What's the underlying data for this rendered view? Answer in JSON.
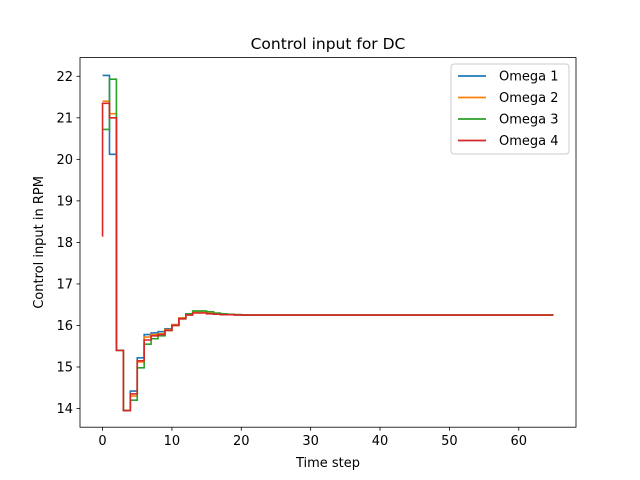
{
  "chart_data": {
    "type": "line",
    "drawstyle": "steps-post",
    "title": "Control input for DC",
    "xlabel": "Time step",
    "ylabel": "Control input in RPM",
    "xlim": [
      -3.25,
      68.25
    ],
    "ylim": [
      13.55,
      22.45
    ],
    "xticks": [
      0,
      10,
      20,
      30,
      40,
      50,
      60
    ],
    "yticks": [
      14,
      15,
      16,
      17,
      18,
      19,
      20,
      21,
      22
    ],
    "grid": false,
    "legend_position": "upper right",
    "colors": {
      "Omega 1": "#1f77b4",
      "Omega 2": "#ff7f0e",
      "Omega 3": "#2ca02c",
      "Omega 4": "#d62728"
    },
    "x": [
      0,
      1,
      2,
      3,
      4,
      5,
      6,
      7,
      8,
      9,
      10,
      11,
      12,
      13,
      14,
      15,
      16,
      17,
      18,
      19,
      20,
      21,
      22,
      23,
      24,
      25,
      26,
      27,
      28,
      29,
      30,
      31,
      32,
      33,
      34,
      35,
      36,
      37,
      38,
      39,
      40,
      41,
      42,
      43,
      44,
      45,
      46,
      47,
      48,
      49,
      50,
      51,
      52,
      53,
      54,
      55,
      56,
      57,
      58,
      59,
      60,
      61,
      62,
      63,
      64,
      65
    ],
    "series": [
      {
        "name": "Omega 1",
        "values": [
          22.02,
          20.12,
          15.4,
          13.95,
          14.42,
          15.22,
          15.78,
          15.82,
          15.85,
          15.92,
          16.02,
          16.18,
          16.28,
          16.32,
          16.32,
          16.3,
          16.28,
          16.27,
          16.26,
          16.26,
          16.25,
          16.25,
          16.25,
          16.25,
          16.25,
          16.25,
          16.25,
          16.25,
          16.25,
          16.25,
          16.25,
          16.25,
          16.25,
          16.25,
          16.25,
          16.25,
          16.25,
          16.25,
          16.25,
          16.25,
          16.25,
          16.25,
          16.25,
          16.25,
          16.25,
          16.25,
          16.25,
          16.25,
          16.25,
          16.25,
          16.25,
          16.25,
          16.25,
          16.25,
          16.25,
          16.25,
          16.25,
          16.25,
          16.25,
          16.25,
          16.25,
          16.25,
          16.25,
          16.25,
          16.25,
          16.25
        ]
      },
      {
        "name": "Omega 2",
        "values": [
          21.4,
          21.1,
          15.4,
          13.95,
          14.3,
          15.12,
          15.72,
          15.78,
          15.8,
          15.9,
          16.02,
          16.18,
          16.28,
          16.32,
          16.33,
          16.31,
          16.29,
          16.27,
          16.26,
          16.26,
          16.25,
          16.25,
          16.25,
          16.25,
          16.25,
          16.25,
          16.25,
          16.25,
          16.25,
          16.25,
          16.25,
          16.25,
          16.25,
          16.25,
          16.25,
          16.25,
          16.25,
          16.25,
          16.25,
          16.25,
          16.25,
          16.25,
          16.25,
          16.25,
          16.25,
          16.25,
          16.25,
          16.25,
          16.25,
          16.25,
          16.25,
          16.25,
          16.25,
          16.25,
          16.25,
          16.25,
          16.25,
          16.25,
          16.25,
          16.25,
          16.25,
          16.25,
          16.25,
          16.25,
          16.25,
          16.25
        ]
      },
      {
        "name": "Omega 3",
        "values": [
          20.72,
          21.93,
          15.4,
          13.95,
          14.2,
          14.98,
          15.55,
          15.68,
          15.75,
          15.88,
          16.0,
          16.16,
          16.28,
          16.35,
          16.35,
          16.33,
          16.3,
          16.28,
          16.27,
          16.26,
          16.25,
          16.25,
          16.25,
          16.25,
          16.25,
          16.25,
          16.25,
          16.25,
          16.25,
          16.25,
          16.25,
          16.25,
          16.25,
          16.25,
          16.25,
          16.25,
          16.25,
          16.25,
          16.25,
          16.25,
          16.25,
          16.25,
          16.25,
          16.25,
          16.25,
          16.25,
          16.25,
          16.25,
          16.25,
          16.25,
          16.25,
          16.25,
          16.25,
          16.25,
          16.25,
          16.25,
          16.25,
          16.25,
          16.25,
          16.25,
          16.25,
          16.25,
          16.25,
          16.25,
          16.25,
          16.25
        ]
      },
      {
        "name": "Omega 4",
        "values": [
          18.15,
          21.35,
          21.0,
          15.4,
          13.95,
          14.35,
          15.15,
          15.65,
          15.75,
          15.78,
          15.88,
          16.0,
          16.16,
          16.25,
          16.3,
          16.3,
          16.28,
          16.27,
          16.26,
          16.26,
          16.25,
          16.25,
          16.25,
          16.25,
          16.25,
          16.25,
          16.25,
          16.25,
          16.25,
          16.25,
          16.25,
          16.25,
          16.25,
          16.25,
          16.25,
          16.25,
          16.25,
          16.25,
          16.25,
          16.25,
          16.25,
          16.25,
          16.25,
          16.25,
          16.25,
          16.25,
          16.25,
          16.25,
          16.25,
          16.25,
          16.25,
          16.25,
          16.25,
          16.25,
          16.25,
          16.25,
          16.25,
          16.25,
          16.25,
          16.25,
          16.25,
          16.25,
          16.25,
          16.25,
          16.25,
          16.25,
          16.25
        ],
        "x": [
          -0.02,
          0.0,
          1.0,
          2.0,
          3.0,
          4.0,
          5.0,
          6.0,
          7.0,
          8.0,
          9.0,
          10.0,
          11.0,
          12.0,
          13.0,
          14.0,
          15.0,
          16.0,
          17.0,
          18.0,
          19.0,
          20.0,
          21.0,
          22.0,
          23.0,
          24.0,
          25.0,
          26.0,
          27.0,
          28.0,
          29.0,
          30.0,
          31.0,
          32.0,
          33.0,
          34.0,
          35.0,
          36.0,
          37.0,
          38.0,
          39.0,
          40.0,
          41.0,
          42.0,
          43.0,
          44.0,
          45.0,
          46.0,
          47.0,
          48.0,
          49.0,
          50.0,
          51.0,
          52.0,
          53.0,
          54.0,
          55.0,
          56.0,
          57.0,
          58.0,
          59.0,
          60.0,
          61.0,
          62.0,
          63.0,
          64.0,
          65.0
        ]
      }
    ]
  }
}
